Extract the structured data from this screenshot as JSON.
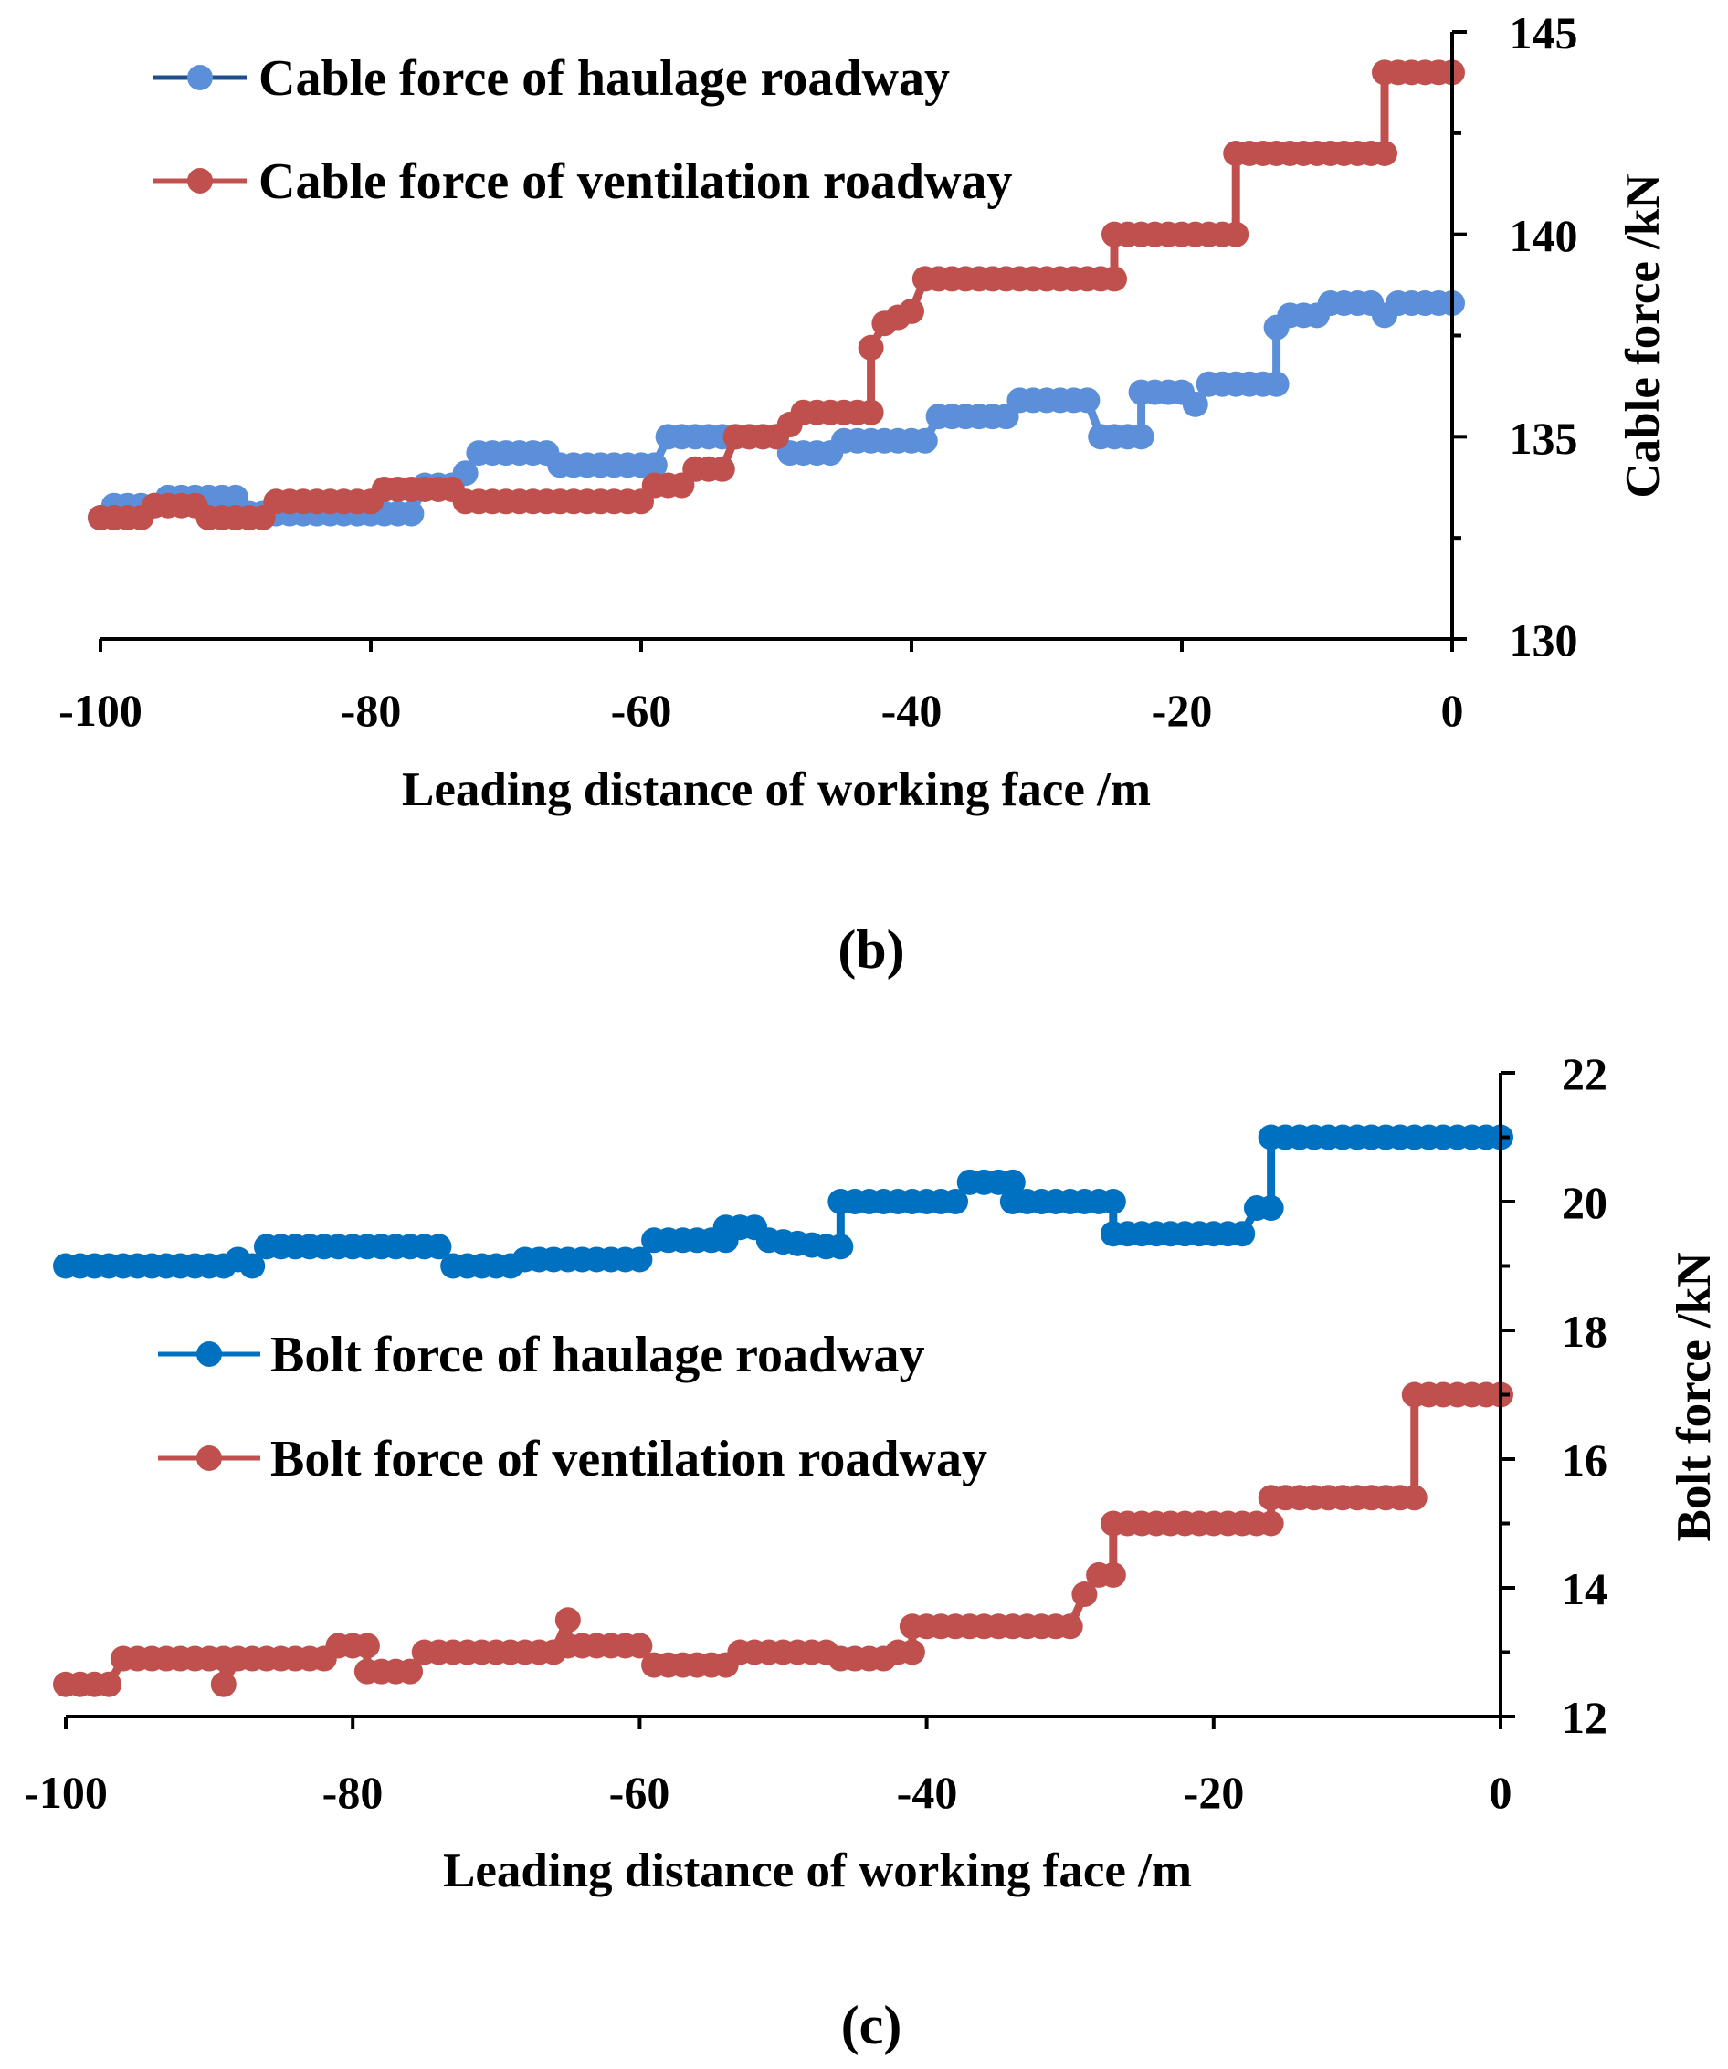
{
  "chart_data": [
    {
      "type": "line",
      "panel_label": "(b)",
      "xlabel": "Leading distance of working face /m",
      "ylabel": "Cable force /kN",
      "xlim": [
        -100,
        0
      ],
      "ylim": [
        130,
        145
      ],
      "x_ticks": [
        -100,
        -80,
        -60,
        -40,
        -20,
        0
      ],
      "x_tick_labels": [
        "-100",
        "-80",
        "-60",
        "-40",
        "-20",
        "0"
      ],
      "y_ticks": [
        130,
        135,
        140,
        145
      ],
      "y_tick_labels": [
        "130",
        "135",
        "140",
        "145"
      ],
      "y_axis_side": "right",
      "legend_position": "top-left",
      "series": [
        {
          "name": "Cable force of haulage roadway",
          "color": "#5B8FD9",
          "legend_line_color": "#1F4E8C",
          "points": [
            [
              -100,
              133.0
            ],
            [
              -99,
              133.3
            ],
            [
              -96,
              133.3
            ],
            [
              -95,
              133.5
            ],
            [
              -90,
              133.5
            ],
            [
              -89,
              133.1
            ],
            [
              -77,
              133.1
            ],
            [
              -76,
              133.8
            ],
            [
              -74,
              133.8
            ],
            [
              -73,
              134.1
            ],
            [
              -72,
              134.6
            ],
            [
              -67,
              134.6
            ],
            [
              -66,
              134.3
            ],
            [
              -59,
              134.3
            ],
            [
              -58,
              135.0
            ],
            [
              -50,
              135.0
            ],
            [
              -49,
              134.6
            ],
            [
              -46,
              134.6
            ],
            [
              -45,
              134.9
            ],
            [
              -39,
              134.9
            ],
            [
              -38,
              135.5
            ],
            [
              -33,
              135.5
            ],
            [
              -32,
              135.9
            ],
            [
              -27,
              135.9
            ],
            [
              -26,
              135.0
            ],
            [
              -23,
              135.0
            ],
            [
              -23,
              136.1
            ],
            [
              -20,
              136.1
            ],
            [
              -19,
              135.8
            ],
            [
              -18,
              136.3
            ],
            [
              -13,
              136.3
            ],
            [
              -13,
              137.7
            ],
            [
              -12,
              138.0
            ],
            [
              -10,
              138.0
            ],
            [
              -9,
              138.3
            ],
            [
              -6,
              138.3
            ],
            [
              -5,
              138.0
            ],
            [
              -4,
              138.3
            ],
            [
              0,
              138.3
            ]
          ]
        },
        {
          "name": "Cable force of ventilation roadway",
          "color": "#C0504D",
          "points": [
            [
              -100,
              133.0
            ],
            [
              -97,
              133.0
            ],
            [
              -96,
              133.3
            ],
            [
              -93,
              133.3
            ],
            [
              -92,
              133.0
            ],
            [
              -88,
              133.0
            ],
            [
              -87,
              133.4
            ],
            [
              -80,
              133.4
            ],
            [
              -79,
              133.7
            ],
            [
              -74,
              133.7
            ],
            [
              -73,
              133.4
            ],
            [
              -60,
              133.4
            ],
            [
              -59,
              133.8
            ],
            [
              -57,
              133.8
            ],
            [
              -56,
              134.2
            ],
            [
              -54,
              134.2
            ],
            [
              -53,
              135.0
            ],
            [
              -50,
              135.0
            ],
            [
              -49,
              135.3
            ],
            [
              -48,
              135.6
            ],
            [
              -43,
              135.6
            ],
            [
              -43,
              137.2
            ],
            [
              -42,
              137.8
            ],
            [
              -40,
              138.1
            ],
            [
              -39,
              138.9
            ],
            [
              -25,
              138.9
            ],
            [
              -25,
              140.0
            ],
            [
              -16,
              140.0
            ],
            [
              -16,
              142.0
            ],
            [
              -5,
              142.0
            ],
            [
              -5,
              144.0
            ],
            [
              0,
              144.0
            ]
          ]
        }
      ]
    },
    {
      "type": "line",
      "panel_label": "(c)",
      "xlabel": "Leading distance of working face /m",
      "ylabel": "Bolt force /kN",
      "xlim": [
        -100,
        0
      ],
      "ylim": [
        12,
        22
      ],
      "x_ticks": [
        -100,
        -80,
        -60,
        -40,
        -20,
        0
      ],
      "x_tick_labels": [
        "-100",
        "-80",
        "-60",
        "-40",
        "-20",
        "0"
      ],
      "y_ticks": [
        12,
        14,
        16,
        18,
        20,
        22
      ],
      "y_tick_labels": [
        "12",
        "14",
        "16",
        "18",
        "20",
        "22"
      ],
      "y_axis_side": "right",
      "legend_position": "center-left",
      "series": [
        {
          "name": "Bolt force of haulage roadway",
          "color": "#0070C0",
          "points": [
            [
              -100,
              19.0
            ],
            [
              -89,
              19.0
            ],
            [
              -88,
              19.1
            ],
            [
              -87,
              19.0
            ],
            [
              -86,
              19.3
            ],
            [
              -74,
              19.3
            ],
            [
              -73,
              19.0
            ],
            [
              -69,
              19.0
            ],
            [
              -68,
              19.1
            ],
            [
              -60,
              19.1
            ],
            [
              -59,
              19.4
            ],
            [
              -54,
              19.4
            ],
            [
              -54,
              19.6
            ],
            [
              -52,
              19.6
            ],
            [
              -51,
              19.4
            ],
            [
              -47,
              19.3
            ],
            [
              -46,
              19.3
            ],
            [
              -46,
              20.0
            ],
            [
              -38,
              20.0
            ],
            [
              -37,
              20.3
            ],
            [
              -34,
              20.3
            ],
            [
              -34,
              20.0
            ],
            [
              -27,
              20.0
            ],
            [
              -27,
              19.5
            ],
            [
              -18,
              19.5
            ],
            [
              -17,
              19.9
            ],
            [
              -16,
              19.9
            ],
            [
              -16,
              21.0
            ],
            [
              0,
              21.0
            ]
          ]
        },
        {
          "name": "Bolt force of ventilation roadway",
          "color": "#C0504D",
          "points": [
            [
              -100,
              12.5
            ],
            [
              -97,
              12.5
            ],
            [
              -96,
              12.9
            ],
            [
              -89,
              12.9
            ],
            [
              -89,
              12.5
            ],
            [
              -88,
              12.9
            ],
            [
              -82,
              12.9
            ],
            [
              -81,
              13.1
            ],
            [
              -79,
              13.1
            ],
            [
              -79,
              12.7
            ],
            [
              -76,
              12.7
            ],
            [
              -75,
              13.0
            ],
            [
              -66,
              13.0
            ],
            [
              -65,
              13.5
            ],
            [
              -65,
              13.1
            ],
            [
              -60,
              13.1
            ],
            [
              -59,
              12.8
            ],
            [
              -54,
              12.8
            ],
            [
              -53,
              13.0
            ],
            [
              -47,
              13.0
            ],
            [
              -46,
              12.9
            ],
            [
              -43,
              12.9
            ],
            [
              -42,
              13.0
            ],
            [
              -41,
              13.0
            ],
            [
              -41,
              13.4
            ],
            [
              -30,
              13.4
            ],
            [
              -29,
              13.9
            ],
            [
              -28,
              14.2
            ],
            [
              -27,
              14.2
            ],
            [
              -27,
              15.0
            ],
            [
              -16,
              15.0
            ],
            [
              -16,
              15.4
            ],
            [
              -6,
              15.4
            ],
            [
              -6,
              17.0
            ],
            [
              0,
              17.0
            ]
          ]
        }
      ]
    }
  ]
}
